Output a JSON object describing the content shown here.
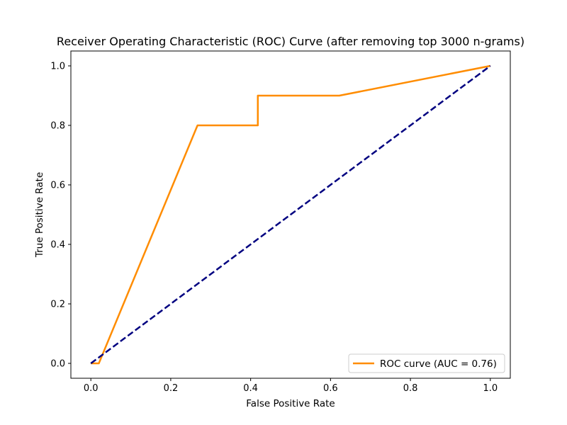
{
  "chart_data": {
    "type": "line",
    "title": "Receiver Operating Characteristic (ROC) Curve (after removing top 3000 n-grams)",
    "xlabel": "False Positive Rate",
    "ylabel": "True Positive Rate",
    "xlim": [
      -0.05,
      1.05
    ],
    "ylim": [
      -0.05,
      1.05
    ],
    "xticks": [
      0.0,
      0.2,
      0.4,
      0.6,
      0.8,
      1.0
    ],
    "xtick_labels": [
      "0.0",
      "0.2",
      "0.4",
      "0.6",
      "0.8",
      "1.0"
    ],
    "yticks": [
      0.0,
      0.2,
      0.4,
      0.6,
      0.8,
      1.0
    ],
    "ytick_labels": [
      "0.0",
      "0.2",
      "0.4",
      "0.6",
      "0.8",
      "1.0"
    ],
    "grid": false,
    "legend_position": "lower right",
    "series": [
      {
        "name": "ROC curve (AUC = 0.76)",
        "color": "#ff8c00",
        "style": "solid",
        "x": [
          0.0,
          0.02,
          0.267,
          0.418,
          0.418,
          0.622,
          1.0
        ],
        "y": [
          0.0,
          0.0,
          0.8,
          0.8,
          0.9,
          0.9,
          1.0
        ]
      },
      {
        "color": "#000080",
        "style": "dashed",
        "x": [
          0.0,
          1.0
        ],
        "y": [
          0.0,
          1.0
        ]
      }
    ]
  }
}
